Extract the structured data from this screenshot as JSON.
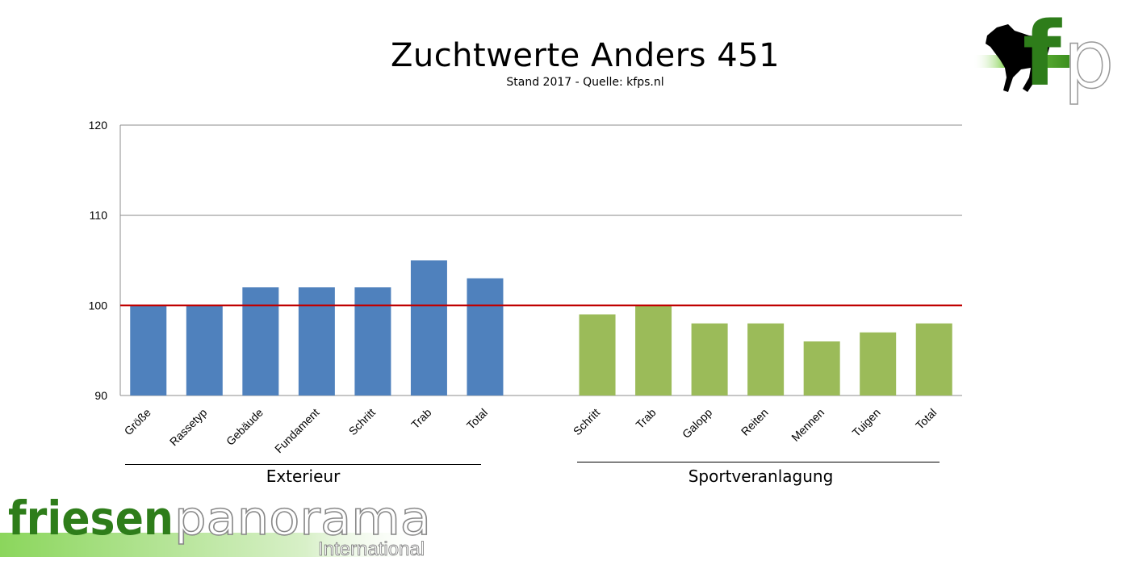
{
  "chart_data": {
    "type": "bar",
    "title": "Zuchtwerte Anders 451",
    "subtitle": "Stand 2017 - Quelle: kfps.nl",
    "ylim": [
      90,
      120
    ],
    "yticks": [
      90,
      100,
      110,
      120
    ],
    "reference_line": 100,
    "grid": true,
    "groups": [
      {
        "name": "Exterieur",
        "color": "#4F81BD",
        "categories": [
          "Größe",
          "Rassetyp",
          "Gebäude",
          "Fundament",
          "Schritt",
          "Trab",
          "Total"
        ],
        "values": [
          100,
          100,
          102,
          102,
          102,
          105,
          103
        ]
      },
      {
        "name": "Sportveranlagung",
        "color": "#9BBB59",
        "categories": [
          "Schritt",
          "Trab",
          "Galopp",
          "Reiten",
          "Mennen",
          "Tuigen",
          "Total"
        ],
        "values": [
          99,
          100,
          98,
          98,
          96,
          97,
          98
        ]
      }
    ],
    "reference_color": "#C00000"
  },
  "logos": {
    "fp": {
      "text": "fp"
    },
    "brand": {
      "text_main": "friesenpanorama",
      "text_sub": "International"
    }
  }
}
